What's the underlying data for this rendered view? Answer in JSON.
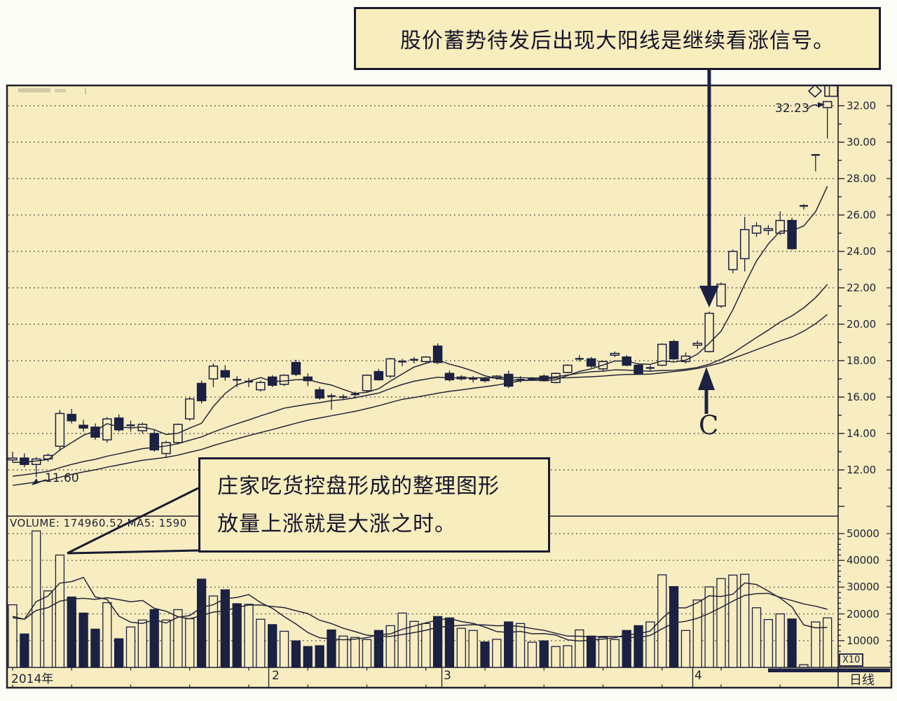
{
  "callouts": {
    "top": {
      "text": "股价蓄势待发后出现大阳线是继续看涨信号。"
    },
    "mid": {
      "line1": "庄家吃货控盘形成的整理图形",
      "line2": "放量上涨就是大涨之时。"
    }
  },
  "labels": {
    "volume_header": "VOLUME: 174960.52 MA5: 1590",
    "price_marker": "32.23",
    "low_marker": "11.60",
    "point_c": "C",
    "multiplier": "X10",
    "period": "日线",
    "year": "2014年",
    "months": [
      "2",
      "3",
      "4"
    ]
  },
  "axes": {
    "price_ticks": [
      "32.00",
      "30.00",
      "28.00",
      "26.00",
      "24.00",
      "22.00",
      "20.00",
      "18.00",
      "16.00",
      "14.00",
      "12.00"
    ],
    "volume_ticks": [
      "50000",
      "40000",
      "30000",
      "20000",
      "10000"
    ]
  },
  "icons": [
    "diamond-icon",
    "window-icon"
  ],
  "colors": {
    "paper": "#f8edc0",
    "panel": "#f8edbd",
    "ink": "#1b2142",
    "grid": "#4c4a40",
    "page": "#fdfdf8"
  },
  "chart_data": {
    "type": "candlestick",
    "title": "",
    "x_axis": {
      "year": "2014",
      "month_starts": [
        22,
        37,
        58
      ],
      "period": "daily"
    },
    "price_axis_range": [
      12,
      32
    ],
    "volume_axis_range": [
      0,
      50000
    ],
    "volume_unit_note": "X10",
    "current_price": 32.23,
    "marked_low": 11.6,
    "moving_averages": {
      "price_periods": [
        5,
        20,
        30
      ],
      "volume_periods": [
        5,
        10
      ],
      "seed_price_start": 9.6,
      "seed_price_step": 0.1,
      "seed_volume": 18000
    },
    "candles_format": [
      "open",
      "high",
      "low",
      "close",
      "volume"
    ],
    "candles": [
      [
        12.55,
        13.0,
        12.4,
        12.65,
        23400
      ],
      [
        12.65,
        12.9,
        12.15,
        12.3,
        12500
      ],
      [
        12.3,
        12.7,
        11.6,
        12.6,
        51000
      ],
      [
        12.6,
        12.9,
        12.45,
        12.8,
        28600
      ],
      [
        13.3,
        15.3,
        13.1,
        15.1,
        42000
      ],
      [
        15.05,
        15.35,
        14.55,
        14.7,
        26300
      ],
      [
        14.45,
        14.75,
        14.1,
        14.3,
        20300
      ],
      [
        14.35,
        14.55,
        13.65,
        13.8,
        14300
      ],
      [
        13.65,
        14.9,
        13.5,
        14.8,
        24200
      ],
      [
        14.85,
        15.05,
        14.1,
        14.2,
        10700
      ],
      [
        14.4,
        14.7,
        14.1,
        14.45,
        15100
      ],
      [
        14.15,
        14.6,
        14.0,
        14.5,
        17700
      ],
      [
        14.0,
        14.2,
        13.0,
        13.1,
        21600
      ],
      [
        12.9,
        13.6,
        12.65,
        13.5,
        17700
      ],
      [
        13.5,
        14.55,
        13.4,
        14.5,
        21600
      ],
      [
        14.8,
        16.0,
        14.7,
        15.9,
        18200
      ],
      [
        16.75,
        16.9,
        15.65,
        15.8,
        33000
      ],
      [
        17.0,
        17.85,
        16.55,
        17.7,
        26700
      ],
      [
        17.45,
        17.75,
        16.9,
        17.1,
        29000
      ],
      [
        16.95,
        17.15,
        16.55,
        16.9,
        23800
      ],
      [
        16.85,
        17.05,
        16.55,
        16.85,
        23600
      ],
      [
        16.4,
        16.9,
        16.3,
        16.8,
        18000
      ],
      [
        17.1,
        17.2,
        16.55,
        16.65,
        16000
      ],
      [
        16.7,
        17.25,
        16.6,
        17.2,
        13500
      ],
      [
        17.9,
        18.05,
        17.15,
        17.25,
        9900
      ],
      [
        17.1,
        17.3,
        16.6,
        16.9,
        7800
      ],
      [
        16.4,
        16.55,
        15.85,
        15.95,
        8100
      ],
      [
        16.05,
        16.2,
        15.3,
        16.0,
        14000
      ],
      [
        15.95,
        16.15,
        15.85,
        16.0,
        11700
      ],
      [
        16.1,
        16.3,
        15.95,
        16.15,
        11200
      ],
      [
        16.35,
        17.25,
        16.25,
        17.2,
        10400
      ],
      [
        17.4,
        17.55,
        16.9,
        16.95,
        13800
      ],
      [
        17.15,
        18.15,
        17.05,
        18.1,
        15600
      ],
      [
        17.9,
        18.1,
        17.7,
        17.95,
        20300
      ],
      [
        18.0,
        18.2,
        17.85,
        18.05,
        17200
      ],
      [
        17.95,
        18.25,
        17.85,
        18.2,
        16400
      ],
      [
        18.8,
        18.95,
        17.8,
        17.9,
        19000
      ],
      [
        17.3,
        17.45,
        16.85,
        16.95,
        18500
      ],
      [
        17.0,
        17.2,
        16.9,
        17.1,
        14600
      ],
      [
        17.0,
        17.15,
        16.8,
        17.0,
        13800
      ],
      [
        17.0,
        17.1,
        16.8,
        16.9,
        9500
      ],
      [
        17.05,
        17.2,
        16.95,
        17.15,
        10500
      ],
      [
        17.25,
        17.45,
        16.5,
        16.6,
        17000
      ],
      [
        16.9,
        17.15,
        16.8,
        16.95,
        16400
      ],
      [
        17.0,
        17.1,
        16.9,
        17.0,
        9400
      ],
      [
        17.15,
        17.25,
        16.85,
        16.9,
        9900
      ],
      [
        16.8,
        17.35,
        16.75,
        17.3,
        7800
      ],
      [
        17.35,
        17.8,
        17.3,
        17.75,
        8100
      ],
      [
        18.05,
        18.3,
        17.95,
        18.1,
        14000
      ],
      [
        18.1,
        18.2,
        17.6,
        17.7,
        11700
      ],
      [
        17.55,
        18.0,
        17.45,
        17.95,
        11200
      ],
      [
        18.3,
        18.5,
        18.2,
        18.4,
        10400
      ],
      [
        18.2,
        18.3,
        17.7,
        17.75,
        13800
      ],
      [
        17.75,
        17.85,
        17.25,
        17.3,
        15600
      ],
      [
        17.55,
        17.75,
        17.4,
        17.6,
        17000
      ],
      [
        17.75,
        18.95,
        17.7,
        18.9,
        34600
      ],
      [
        19.05,
        19.15,
        18.05,
        18.1,
        30200
      ],
      [
        17.95,
        18.45,
        17.85,
        18.25,
        13800
      ],
      [
        18.85,
        19.1,
        18.65,
        18.95,
        25200
      ],
      [
        18.5,
        20.7,
        18.45,
        20.6,
        30100
      ],
      [
        21.0,
        22.3,
        20.9,
        22.2,
        33200
      ],
      [
        23.0,
        24.1,
        22.8,
        24.0,
        34500
      ],
      [
        23.6,
        25.9,
        22.9,
        25.2,
        34800
      ],
      [
        25.0,
        25.6,
        24.8,
        25.4,
        22300
      ],
      [
        25.15,
        25.45,
        24.9,
        25.25,
        17900
      ],
      [
        25.0,
        26.2,
        24.9,
        25.7,
        20000
      ],
      [
        25.7,
        25.85,
        24.1,
        24.15,
        18100
      ],
      [
        26.45,
        26.6,
        26.3,
        26.5,
        1000
      ],
      [
        29.3,
        29.3,
        28.4,
        29.3,
        17000
      ],
      [
        31.9,
        32.23,
        30.2,
        32.23,
        18500
      ]
    ],
    "annotations": [
      {
        "kind": "callout-arrow-down",
        "text": "股价蓄势待发后出现大阳线是继续看涨信号。",
        "target_candle_index": 59
      },
      {
        "kind": "callout-leader",
        "text": "庄家吃货控盘形成的整理图形 放量上涨就是大涨之时。",
        "target_volume_bar_index": 2
      },
      {
        "kind": "arrow-up-label",
        "label": "C",
        "target": "MA support under breakout candle"
      },
      {
        "kind": "price-pointer",
        "label": "32.23",
        "target_candle_index": 69
      },
      {
        "kind": "low-pointer",
        "label": "11.60",
        "target_candle_index": 2
      }
    ]
  }
}
